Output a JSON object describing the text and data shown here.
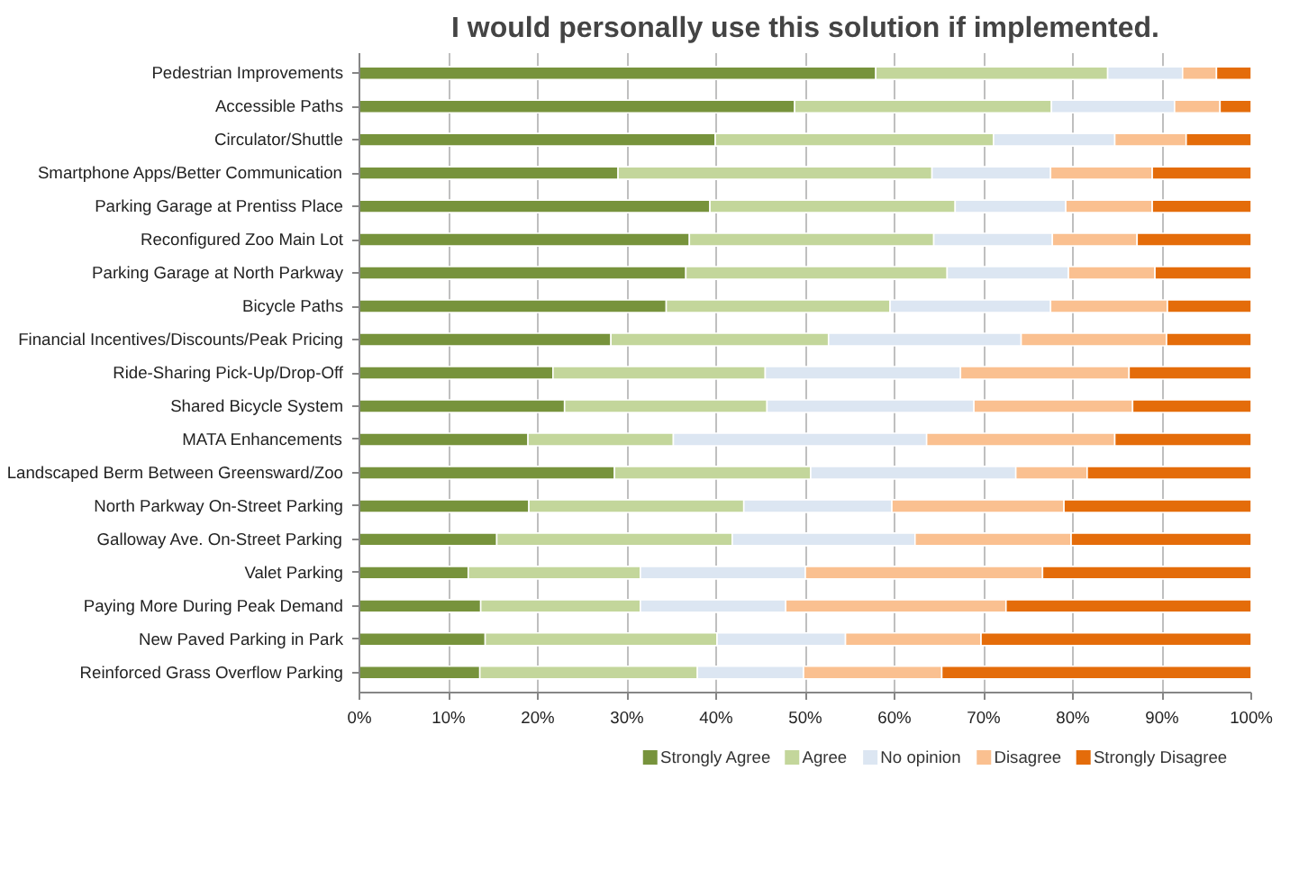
{
  "chart_data": {
    "type": "bar",
    "orientation": "horizontal",
    "stacked": true,
    "title": "I would personally use this solution if implemented.",
    "categories": [
      "Pedestrian Improvements",
      "Accessible Paths",
      "Circulator/Shuttle",
      "Smartphone Apps/Better Communication",
      "Parking Garage at Prentiss Place",
      "Reconfigured Zoo Main Lot",
      "Parking Garage at North Parkway",
      "Bicycle Paths",
      "Financial Incentives/Discounts/Peak Pricing",
      "Ride-Sharing Pick-Up/Drop-Off",
      "Shared Bicycle System",
      "MATA Enhancements",
      "Landscaped Berm Between Greensward/Zoo",
      "North Parkway On-Street Parking",
      "Galloway Ave. On-Street Parking",
      "Valet Parking",
      "Paying More During Peak Demand",
      "New Paved Parking in Park",
      "Reinforced Grass Overflow Parking"
    ],
    "series": [
      {
        "name": "Strongly Agree",
        "color": "#77933c",
        "values": [
          57.9,
          48.8,
          39.9,
          29.0,
          39.3,
          37.0,
          36.6,
          34.4,
          28.2,
          21.7,
          23.0,
          18.9,
          28.6,
          19.0,
          15.4,
          12.2,
          13.6,
          14.1,
          13.5
        ]
      },
      {
        "name": "Agree",
        "color": "#c3d69b",
        "values": [
          26.0,
          28.8,
          31.2,
          35.2,
          27.5,
          27.4,
          29.3,
          25.1,
          24.4,
          23.8,
          22.7,
          16.3,
          22.0,
          24.1,
          26.4,
          19.3,
          17.9,
          26.0,
          24.4
        ]
      },
      {
        "name": "No opinion",
        "color": "#dce6f2",
        "values": [
          8.4,
          13.8,
          13.6,
          13.3,
          12.4,
          13.3,
          13.6,
          18.0,
          21.6,
          21.9,
          23.2,
          28.4,
          23.0,
          16.6,
          20.5,
          18.5,
          16.3,
          14.4,
          11.9
        ]
      },
      {
        "name": "Disagree",
        "color": "#fac090",
        "values": [
          3.8,
          5.1,
          8.0,
          11.4,
          9.7,
          9.5,
          9.7,
          13.1,
          16.3,
          18.9,
          17.8,
          21.1,
          8.0,
          19.3,
          17.5,
          26.6,
          24.7,
          15.2,
          15.5
        ]
      },
      {
        "name": "Strongly Disagree",
        "color": "#e46c0a",
        "values": [
          3.9,
          3.5,
          7.3,
          11.1,
          11.1,
          12.8,
          10.8,
          9.4,
          9.5,
          13.7,
          13.3,
          15.3,
          18.4,
          21.0,
          20.2,
          23.4,
          27.5,
          30.3,
          34.7
        ]
      }
    ],
    "xlim": [
      0,
      100
    ],
    "xticks": [
      {
        "value": 0,
        "label": "0%"
      },
      {
        "value": 10,
        "label": "10%"
      },
      {
        "value": 20,
        "label": "20%"
      },
      {
        "value": 30,
        "label": "30%"
      },
      {
        "value": 40,
        "label": "40%"
      },
      {
        "value": 50,
        "label": "50%"
      },
      {
        "value": 60,
        "label": "60%"
      },
      {
        "value": 70,
        "label": "70%"
      },
      {
        "value": 80,
        "label": "80%"
      },
      {
        "value": 90,
        "label": "90%"
      },
      {
        "value": 100,
        "label": "100%"
      }
    ],
    "grid": "x",
    "legend": "bottom"
  }
}
